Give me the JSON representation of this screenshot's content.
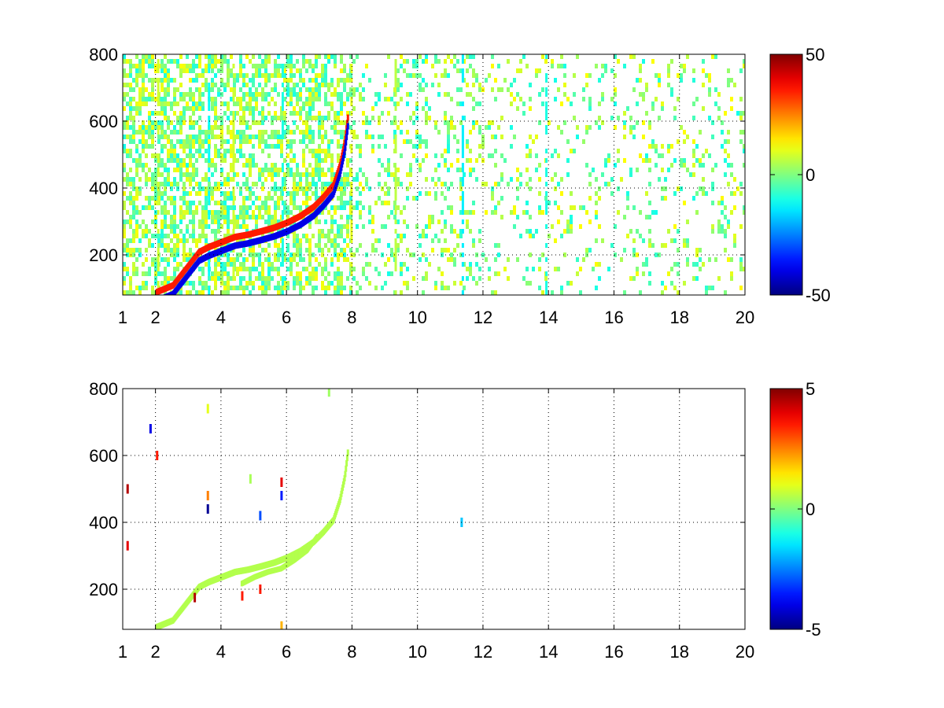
{
  "chart_data": [
    {
      "type": "heatmap",
      "title": "",
      "xlabel": "",
      "ylabel": "",
      "xlim": [
        1,
        20
      ],
      "ylim": [
        80,
        800
      ],
      "xticks": [
        1,
        2,
        4,
        6,
        8,
        10,
        12,
        14,
        16,
        18,
        20
      ],
      "xtick_labels": [
        "1",
        "2",
        "4",
        "6",
        "8",
        "10",
        "12",
        "14",
        "16",
        "18",
        "20"
      ],
      "yticks": [
        200,
        400,
        600,
        800
      ],
      "ytick_labels": [
        "200",
        "400",
        "600",
        "800"
      ],
      "grid": true,
      "colormap": "jet",
      "colorbar": {
        "min": -50,
        "max": 50,
        "tick_labels": [
          "50",
          "0",
          "-50"
        ]
      },
      "ridge_x": [
        2.0,
        2.5,
        2.9,
        3.3,
        3.6,
        4.0,
        4.4,
        4.8,
        5.2,
        5.6,
        6.0,
        6.4,
        6.8,
        7.1,
        7.4,
        7.6,
        7.75,
        7.85
      ],
      "ridge_y": [
        90,
        110,
        160,
        210,
        225,
        240,
        255,
        262,
        272,
        283,
        298,
        318,
        345,
        375,
        410,
        470,
        540,
        620
      ],
      "ridge_value": 35,
      "ridge_shadow_value": -40,
      "noise_amplitude": 12
    },
    {
      "type": "heatmap",
      "title": "",
      "xlabel": "",
      "ylabel": "",
      "xlim": [
        1,
        20
      ],
      "ylim": [
        80,
        800
      ],
      "xticks": [
        1,
        2,
        4,
        6,
        8,
        10,
        12,
        14,
        16,
        18,
        20
      ],
      "xtick_labels": [
        "1",
        "2",
        "4",
        "6",
        "8",
        "10",
        "12",
        "14",
        "16",
        "18",
        "20"
      ],
      "yticks": [
        200,
        400,
        600,
        800
      ],
      "ytick_labels": [
        "200",
        "400",
        "600",
        "800"
      ],
      "grid": true,
      "colormap": "jet",
      "colorbar": {
        "min": -5,
        "max": 5,
        "tick_labels": [
          "5",
          "0",
          "-5"
        ]
      },
      "ridge_x": [
        2.0,
        2.5,
        2.9,
        3.3,
        3.6,
        4.0,
        4.4,
        4.8,
        5.2,
        5.6,
        6.0,
        6.4,
        6.8,
        7.1,
        7.4,
        7.6,
        7.75,
        7.85
      ],
      "ridge_y": [
        90,
        110,
        160,
        210,
        225,
        240,
        255,
        262,
        272,
        283,
        298,
        318,
        345,
        375,
        410,
        470,
        540,
        620
      ],
      "ridge_value": 0.5,
      "branch_x": [
        4.6,
        5.0,
        5.4,
        5.8,
        6.2,
        6.6,
        6.9
      ],
      "branch_y": [
        220,
        240,
        255,
        265,
        290,
        320,
        360
      ],
      "spots": [
        {
          "x": 1.15,
          "y": 500,
          "v": 4.5
        },
        {
          "x": 1.15,
          "y": 330,
          "v": 4.0
        },
        {
          "x": 1.85,
          "y": 680,
          "v": -4.0
        },
        {
          "x": 2.05,
          "y": 600,
          "v": 3.5
        },
        {
          "x": 3.6,
          "y": 440,
          "v": -4.8
        },
        {
          "x": 3.6,
          "y": 480,
          "v": 2.5
        },
        {
          "x": 3.6,
          "y": 740,
          "v": 1.0
        },
        {
          "x": 3.2,
          "y": 175,
          "v": 4.5
        },
        {
          "x": 4.65,
          "y": 180,
          "v": 3.5
        },
        {
          "x": 5.2,
          "y": 420,
          "v": -3.0
        },
        {
          "x": 5.2,
          "y": 200,
          "v": 3.5
        },
        {
          "x": 5.85,
          "y": 520,
          "v": 4.0
        },
        {
          "x": 5.85,
          "y": 480,
          "v": -3.5
        },
        {
          "x": 5.85,
          "y": 90,
          "v": 2.0
        },
        {
          "x": 11.35,
          "y": 400,
          "v": -1.8
        },
        {
          "x": 7.3,
          "y": 790,
          "v": 0.3
        },
        {
          "x": 4.9,
          "y": 530,
          "v": 0.4
        }
      ]
    }
  ]
}
